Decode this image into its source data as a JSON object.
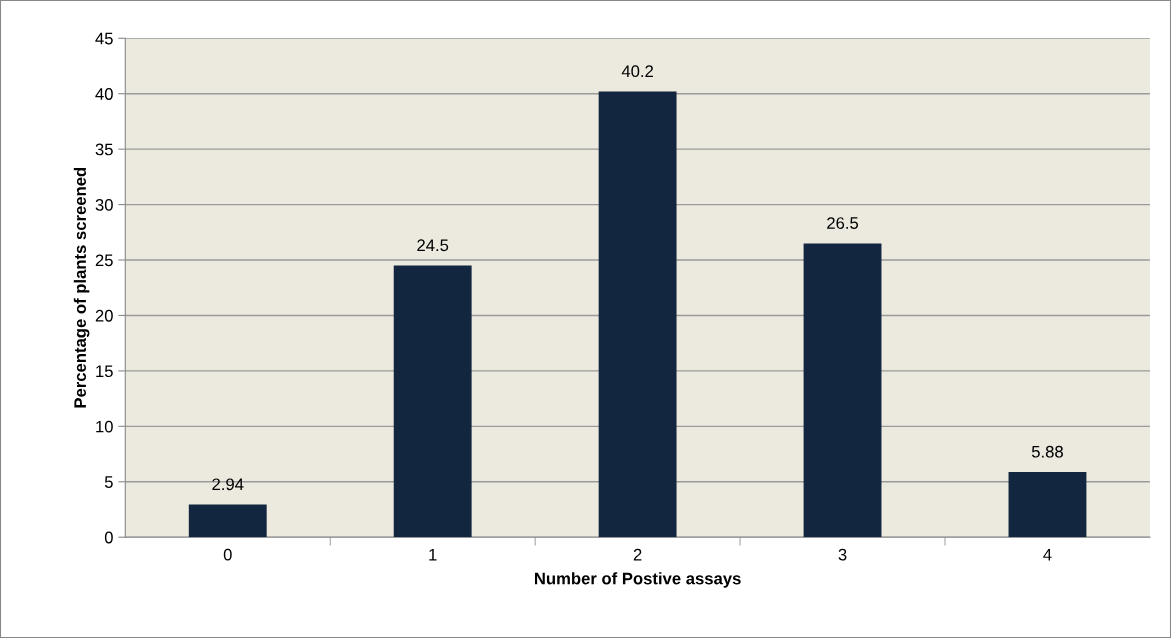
{
  "chart_data": {
    "type": "bar",
    "xlabel": "Number of Postive assays",
    "ylabel": "Percentage of plants screened",
    "categories": [
      "0",
      "1",
      "2",
      "3",
      "4"
    ],
    "values": [
      2.94,
      24.5,
      40.2,
      26.5,
      5.88
    ],
    "color": "#13263f",
    "ylim": [
      0,
      45
    ],
    "yticks": [
      0,
      5,
      10,
      15,
      20,
      25,
      30,
      35,
      40,
      45
    ],
    "grid": "y",
    "data_labels": true
  }
}
